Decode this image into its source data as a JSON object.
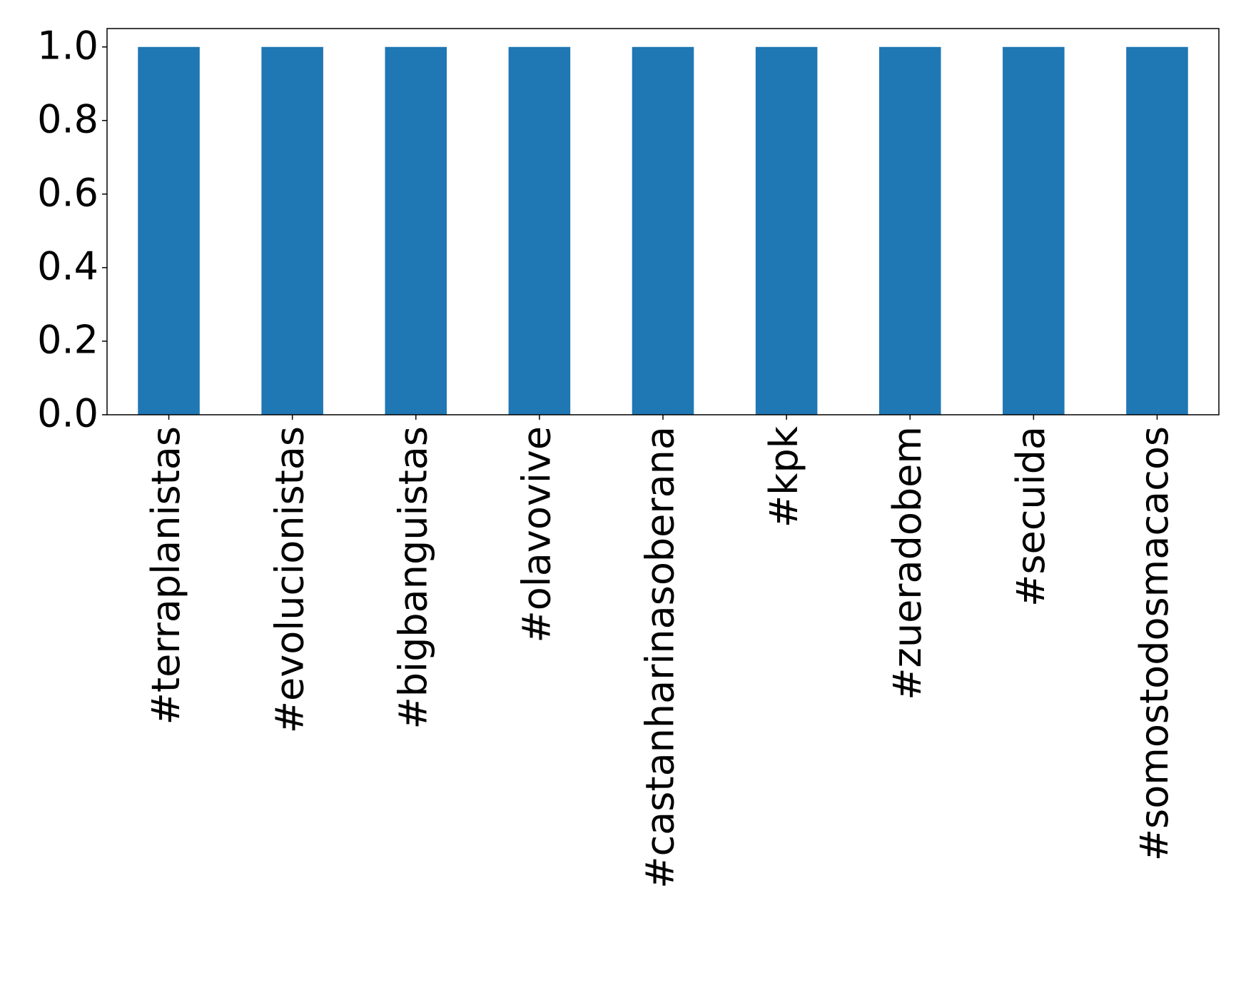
{
  "chart_data": {
    "type": "bar",
    "categories": [
      "#terraplanistas",
      "#evolucionistas",
      "#bigbanguistas",
      "#olavovive",
      "#castanharinasoberana",
      "#kpk",
      "#zueradobem",
      "#secuida",
      "#somostodosmacacos"
    ],
    "values": [
      1,
      1,
      1,
      1,
      1,
      1,
      1,
      1,
      1
    ],
    "color": "#1f77b4",
    "ylim": [
      0,
      1.05
    ],
    "yticks": [
      {
        "value": 0,
        "label": "0.0"
      },
      {
        "value": 0.2,
        "label": "0.2"
      },
      {
        "value": 0.4,
        "label": "0.4"
      },
      {
        "value": 0.6,
        "label": "0.6"
      },
      {
        "value": 0.8,
        "label": "0.8"
      },
      {
        "value": 1,
        "label": "1.0"
      }
    ],
    "grid": false
  }
}
